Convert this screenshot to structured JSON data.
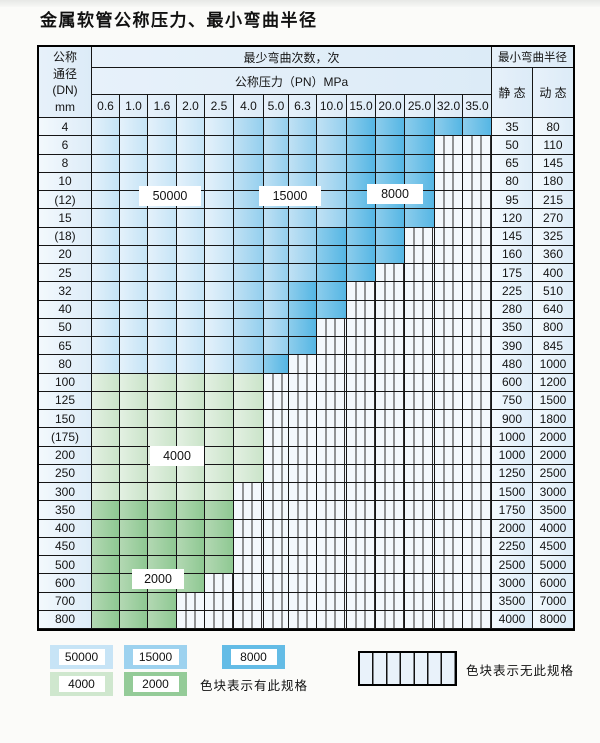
{
  "title": "金属软管公称压力、最小弯曲半径",
  "table": {
    "header": {
      "dn_lines": [
        "公称",
        "通径",
        "(DN)",
        "mm"
      ],
      "bend_cycles": "最少弯曲次数，次",
      "pressure": "公称压力（PN）MPa",
      "pressures": [
        "0.6",
        "1.0",
        "1.6",
        "2.0",
        "2.5",
        "4.0",
        "5.0",
        "6.3",
        "10.0",
        "15.0",
        "20.0",
        "25.0",
        "32.0",
        "35.0"
      ],
      "radius": "最小弯曲半径",
      "static": "静 态",
      "dynamic": "动 态"
    },
    "zone_colors": {
      "50000": [
        "#e4f1fb",
        "#c5e4f6"
      ],
      "15000": [
        "#c0e1f4",
        "#94cfee"
      ],
      "8000": [
        "#8dcdec",
        "#55b6e4"
      ],
      "4000": [
        "#e3f0e2",
        "#cae4c9"
      ],
      "2000": [
        "#b3d8b3",
        "#8ec892"
      ],
      "na_bg": "#f3f8fc"
    },
    "rows": [
      {
        "dn": "4",
        "cells": "55555111188888",
        "static": "35",
        "dynamic": "80"
      },
      {
        "dn": "6",
        "cells": "555551111888xx",
        "static": "50",
        "dynamic": "110"
      },
      {
        "dn": "8",
        "cells": "555551111888xx",
        "static": "65",
        "dynamic": "145"
      },
      {
        "dn": "10",
        "cells": "555551111888xx",
        "static": "80",
        "dynamic": "180"
      },
      {
        "dn": "(12)",
        "cells": "555551111888xx",
        "static": "95",
        "dynamic": "215"
      },
      {
        "dn": "15",
        "cells": "555551111888xx",
        "static": "120",
        "dynamic": "270"
      },
      {
        "dn": "(18)",
        "cells": "55555111888xxx",
        "static": "145",
        "dynamic": "325"
      },
      {
        "dn": "20",
        "cells": "55555111888xxx",
        "static": "160",
        "dynamic": "360"
      },
      {
        "dn": "25",
        "cells": "5555511188xxxx",
        "static": "175",
        "dynamic": "400"
      },
      {
        "dn": "32",
        "cells": "555551188xxxxx",
        "static": "225",
        "dynamic": "510"
      },
      {
        "dn": "40",
        "cells": "555551188xxxxx",
        "static": "280",
        "dynamic": "640"
      },
      {
        "dn": "50",
        "cells": "55555118xxxxxx",
        "static": "350",
        "dynamic": "800"
      },
      {
        "dn": "65",
        "cells": "55555118xxxxxx",
        "static": "390",
        "dynamic": "845"
      },
      {
        "dn": "80",
        "cells": "5555518xxxxxxx",
        "static": "480",
        "dynamic": "1000"
      },
      {
        "dn": "100",
        "cells": "444444xxxxxxxx",
        "static": "600",
        "dynamic": "1200"
      },
      {
        "dn": "125",
        "cells": "444444xxxxxxxx",
        "static": "750",
        "dynamic": "1500"
      },
      {
        "dn": "150",
        "cells": "444444xxxxxxxx",
        "static": "900",
        "dynamic": "1800"
      },
      {
        "dn": "(175)",
        "cells": "444444xxxxxxxx",
        "static": "1000",
        "dynamic": "2000"
      },
      {
        "dn": "200",
        "cells": "444444xxxxxxxx",
        "static": "1000",
        "dynamic": "2000"
      },
      {
        "dn": "250",
        "cells": "444444xxxxxxxx",
        "static": "1250",
        "dynamic": "2500"
      },
      {
        "dn": "300",
        "cells": "44444xxxxxxxxx",
        "static": "1500",
        "dynamic": "3000"
      },
      {
        "dn": "350",
        "cells": "22222xxxxxxxxx",
        "static": "1750",
        "dynamic": "3500"
      },
      {
        "dn": "400",
        "cells": "22222xxxxxxxxx",
        "static": "2000",
        "dynamic": "4000"
      },
      {
        "dn": "450",
        "cells": "22222xxxxxxxxx",
        "static": "2250",
        "dynamic": "4500"
      },
      {
        "dn": "500",
        "cells": "22222xxxxxxxxx",
        "static": "2500",
        "dynamic": "5000"
      },
      {
        "dn": "600",
        "cells": "2222xxxxxxxxxx",
        "static": "3000",
        "dynamic": "6000"
      },
      {
        "dn": "700",
        "cells": "222xxxxxxxxxxx",
        "static": "3500",
        "dynamic": "7000"
      },
      {
        "dn": "800",
        "cells": "222xxxxxxxxxxx",
        "static": "4000",
        "dynamic": "8000"
      }
    ],
    "overlay_labels": {
      "l50000": "50000",
      "l15000": "15000",
      "l8000": "8000",
      "l4000": "4000",
      "l2000": "2000"
    }
  },
  "legend": {
    "swatches": [
      {
        "value": "50000",
        "color": "#c7e4f6"
      },
      {
        "value": "15000",
        "color": "#9dd2ef"
      },
      {
        "value": "8000",
        "color": "#64bce6"
      },
      {
        "value": "4000",
        "color": "#cfe7ce"
      },
      {
        "value": "2000",
        "color": "#94cb98"
      }
    ],
    "available_note": "色块表示有此规格",
    "unavailable_note": "色块表示无此规格"
  }
}
